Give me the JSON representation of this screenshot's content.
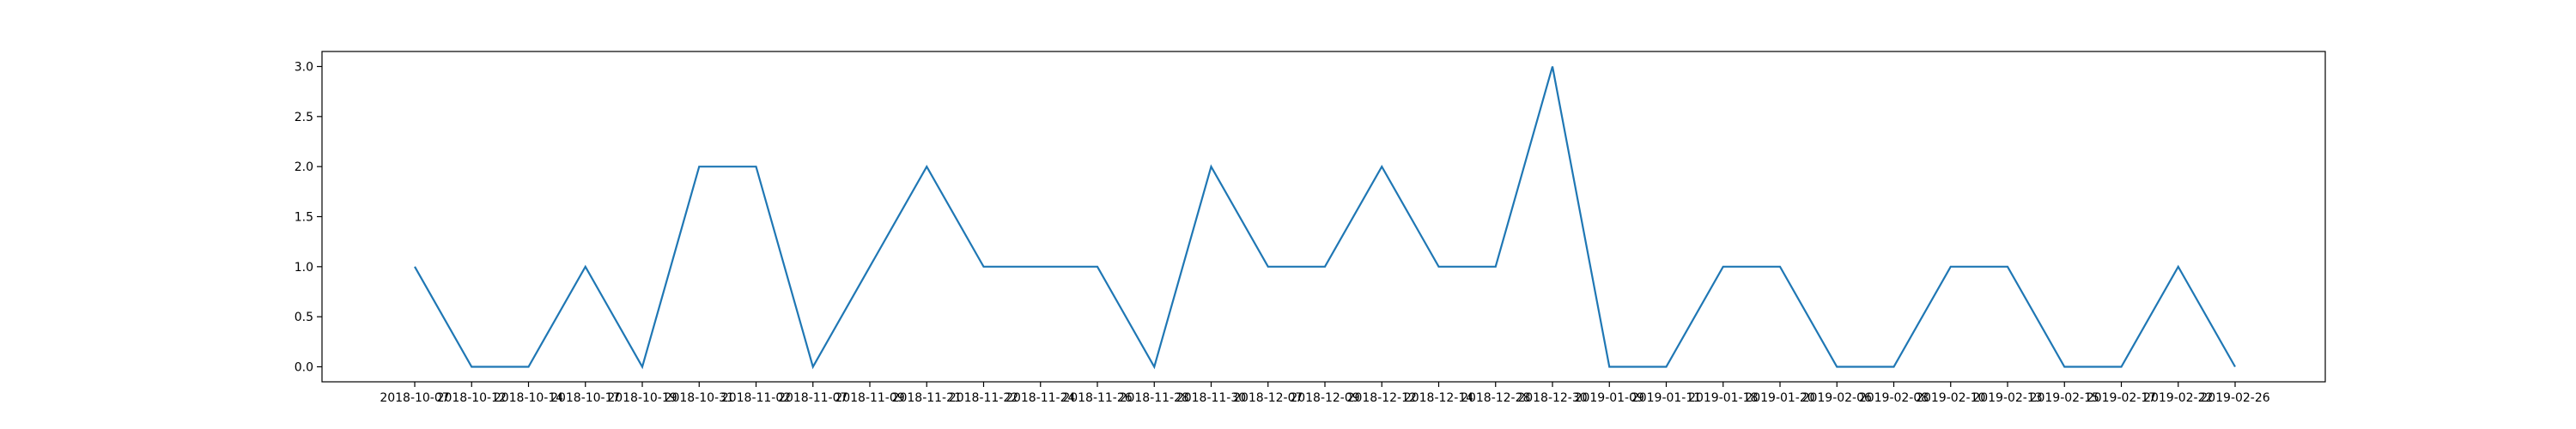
{
  "chart_data": {
    "type": "line",
    "title": "",
    "xlabel": "",
    "ylabel": "",
    "x": [
      "2018-10-07",
      "2018-10-12",
      "2018-10-14",
      "2018-10-17",
      "2018-10-19",
      "2018-10-31",
      "2018-11-02",
      "2018-11-07",
      "2018-11-09",
      "2018-11-21",
      "2018-11-22",
      "2018-11-24",
      "2018-11-26",
      "2018-11-28",
      "2018-11-30",
      "2018-12-07",
      "2018-12-09",
      "2018-12-12",
      "2018-12-14",
      "2018-12-28",
      "2018-12-30",
      "2019-01-09",
      "2019-01-11",
      "2019-01-18",
      "2019-01-20",
      "2019-02-06",
      "2019-02-08",
      "2019-02-10",
      "2019-02-13",
      "2019-02-15",
      "2019-02-17",
      "2019-02-22",
      "2019-02-26"
    ],
    "series": [
      {
        "values": [
          1,
          0,
          0,
          1,
          0,
          2,
          2,
          0,
          1,
          2,
          1,
          1,
          1,
          0,
          2,
          1,
          1,
          2,
          1,
          1,
          3,
          0,
          0,
          1,
          1,
          0,
          0,
          1,
          1,
          0,
          0,
          1,
          0
        ]
      }
    ],
    "yticks": [
      "0.0",
      "0.5",
      "1.0",
      "1.5",
      "2.0",
      "2.5",
      "3.0"
    ],
    "ylim": [
      -0.15,
      3.15
    ],
    "line_color": "#1f77b4",
    "grid": false
  }
}
